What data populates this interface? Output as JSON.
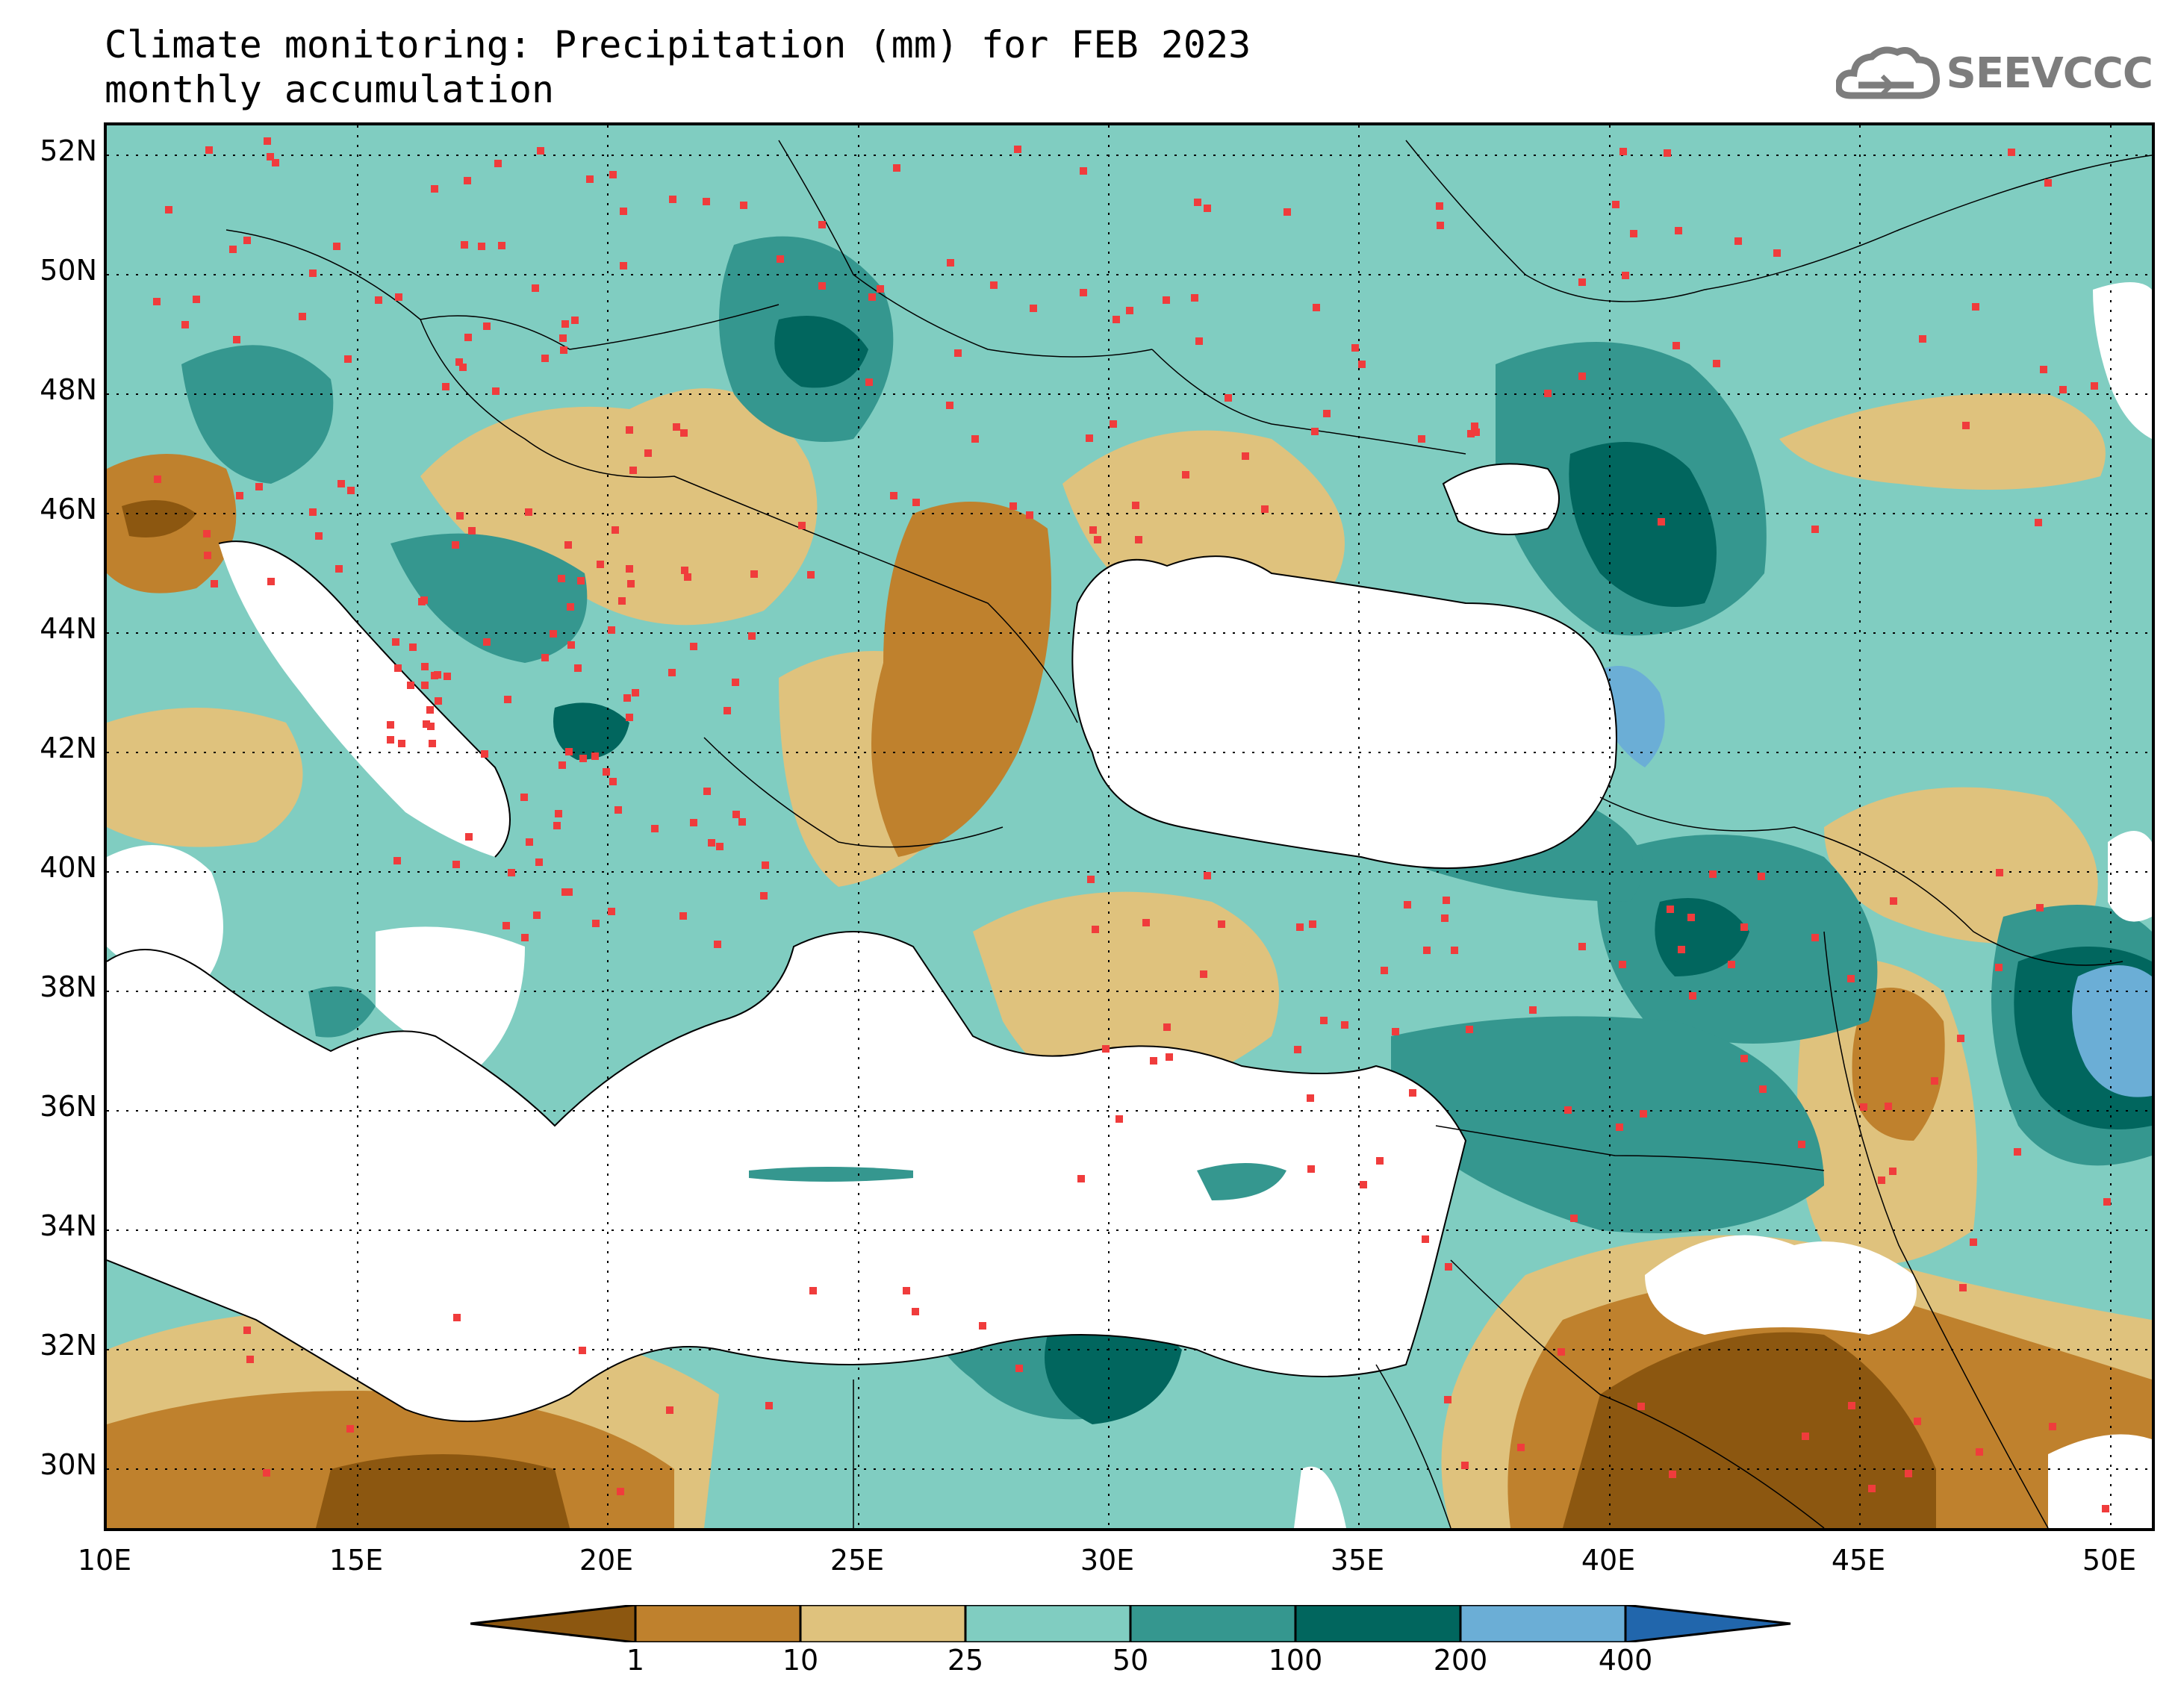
{
  "title": {
    "line1": "Climate monitoring: Precipitation (mm) for FEB 2023",
    "line2": "monthly accumulation"
  },
  "logo": {
    "text": "SEEVCCC",
    "icon": "cloud-logo-icon"
  },
  "map": {
    "lat_range": [
      29,
      52.5
    ],
    "lon_range": [
      10,
      51
    ],
    "lat_ticks": [
      "52N",
      "50N",
      "48N",
      "46N",
      "44N",
      "42N",
      "40N",
      "38N",
      "36N",
      "34N",
      "32N",
      "30N"
    ],
    "lon_ticks": [
      "10E",
      "15E",
      "20E",
      "25E",
      "30E",
      "35E",
      "40E",
      "45E",
      "50E"
    ],
    "grid": "dotted",
    "sea_color": "#ffffff",
    "station_marker_color": "#f03c3c"
  },
  "legend": {
    "colors": [
      "#8c5710",
      "#bf812d",
      "#dfc27d",
      "#80cdc1",
      "#35978f",
      "#01665e",
      "#6baed6",
      "#2166ac"
    ],
    "labels": [
      "1",
      "10",
      "25",
      "50",
      "100",
      "200",
      "400"
    ]
  }
}
